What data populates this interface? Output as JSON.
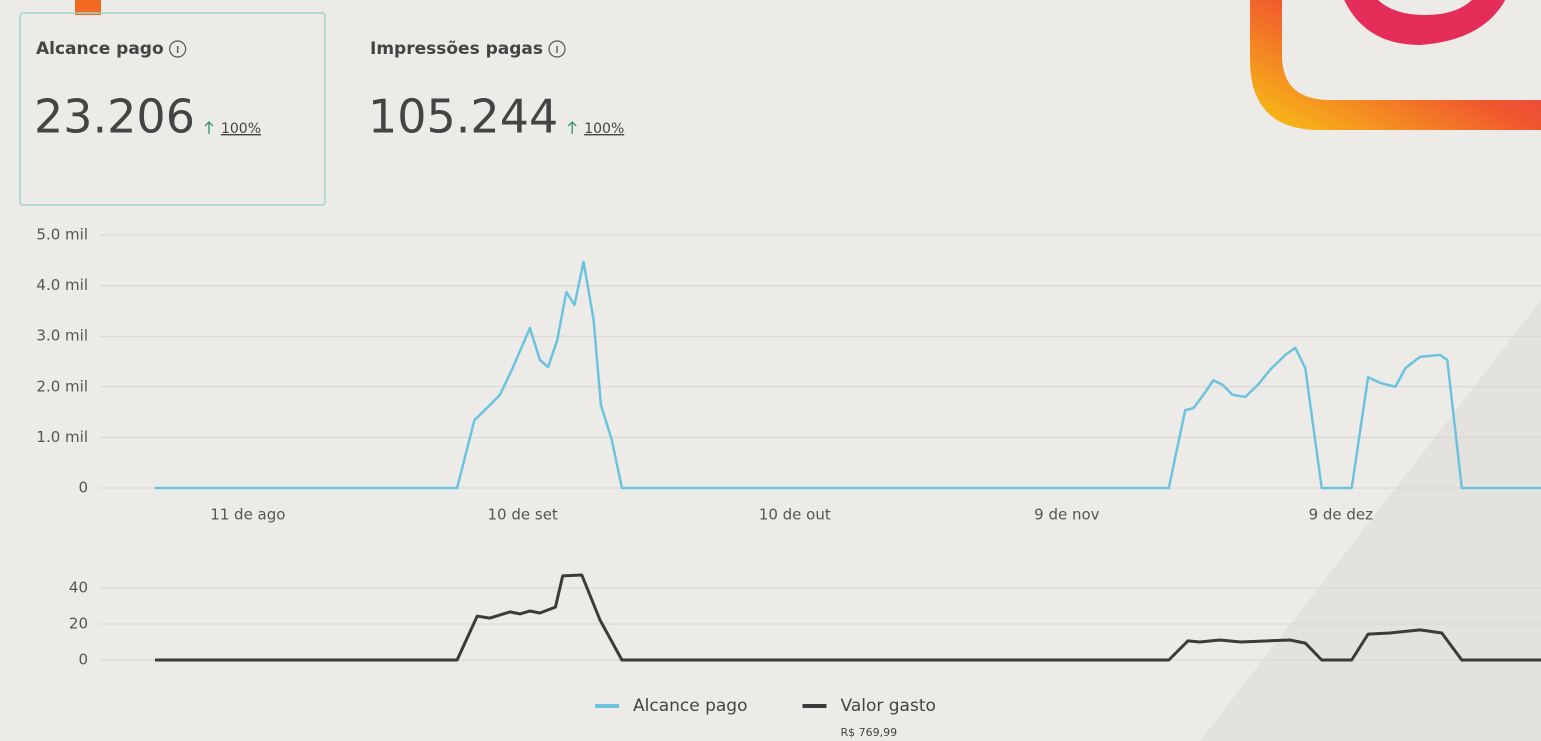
{
  "cards": [
    {
      "label": "Alcance pago",
      "value": "23.206",
      "change": "100%"
    },
    {
      "label": "Impressões pagas",
      "value": "105.244",
      "change": "100%"
    }
  ],
  "chart_data": [
    {
      "type": "line",
      "xlim": [
        0,
        152.3
      ],
      "xticks": [
        {
          "value": 10.2,
          "label": "11 de ago"
        },
        {
          "value": 40.4,
          "label": "10 de set"
        },
        {
          "value": 70.3,
          "label": "10 de out"
        },
        {
          "value": 100.2,
          "label": "9 de nov"
        },
        {
          "value": 130.3,
          "label": "9 de dez"
        }
      ],
      "ylim": [
        0,
        5000
      ],
      "yticks": [
        0,
        {
          "value": 1000,
          "label": "1.0 mil"
        },
        {
          "value": 2000,
          "label": "2.0 mil"
        },
        {
          "value": 3000,
          "label": "3.0 mil"
        },
        {
          "value": 4000,
          "label": "4.0 mil"
        },
        {
          "value": 5000,
          "label": "5.0 mil"
        }
      ],
      "grid": true,
      "series": [
        {
          "name": "Alcance pago",
          "color": "#6cc3df",
          "x": [
            0,
            33.2,
            35.1,
            36.8,
            37.9,
            39.2,
            41.2,
            42.3,
            43.2,
            44.2,
            45.2,
            46.1,
            47.1,
            48.2,
            49.0,
            50.2,
            51.3,
            111.4,
            113.2,
            114.1,
            115.2,
            116.3,
            117.3,
            118.4,
            119.8,
            121.2,
            122.5,
            124.2,
            125.3,
            126.4,
            128.2,
            131.5,
            133.3,
            134.6,
            136.3,
            137.4,
            139.0,
            141.2,
            142.0,
            143.6,
            152.3
          ],
          "values": [
            0,
            0,
            1340,
            1640,
            1840,
            2330,
            3160,
            2530,
            2390,
            2920,
            3870,
            3620,
            4470,
            3320,
            1640,
            950,
            0,
            0,
            1540,
            1580,
            1840,
            2130,
            2040,
            1840,
            1800,
            2040,
            2330,
            2630,
            2770,
            2370,
            0,
            0,
            2190,
            2080,
            2000,
            2370,
            2590,
            2630,
            2530,
            0,
            0
          ]
        }
      ]
    },
    {
      "type": "line",
      "xlim": [
        0,
        152.3
      ],
      "ylim": [
        0,
        40
      ],
      "yticks": [
        0,
        20,
        40
      ],
      "grid": true,
      "series": [
        {
          "name": "Valor gasto",
          "color": "#3b3b3b",
          "total": "R$ 769,99",
          "x": [
            0,
            33.2,
            35.4,
            36.8,
            39.0,
            40.1,
            41.2,
            42.3,
            44.0,
            44.8,
            46.9,
            48.9,
            51.3,
            111.4,
            113.5,
            114.8,
            117.0,
            119.3,
            124.7,
            126.4,
            128.2,
            131.5,
            133.3,
            135.7,
            139.0,
            141.4,
            143.6,
            152.3
          ],
          "values": [
            0,
            0,
            24.4,
            23.3,
            26.7,
            25.6,
            27.2,
            26.1,
            29.4,
            46.7,
            47.2,
            22.2,
            0,
            0,
            10.6,
            10,
            11.1,
            10,
            11.1,
            9.4,
            0,
            0,
            14.4,
            15,
            16.7,
            15,
            0,
            0
          ]
        }
      ]
    }
  ]
}
